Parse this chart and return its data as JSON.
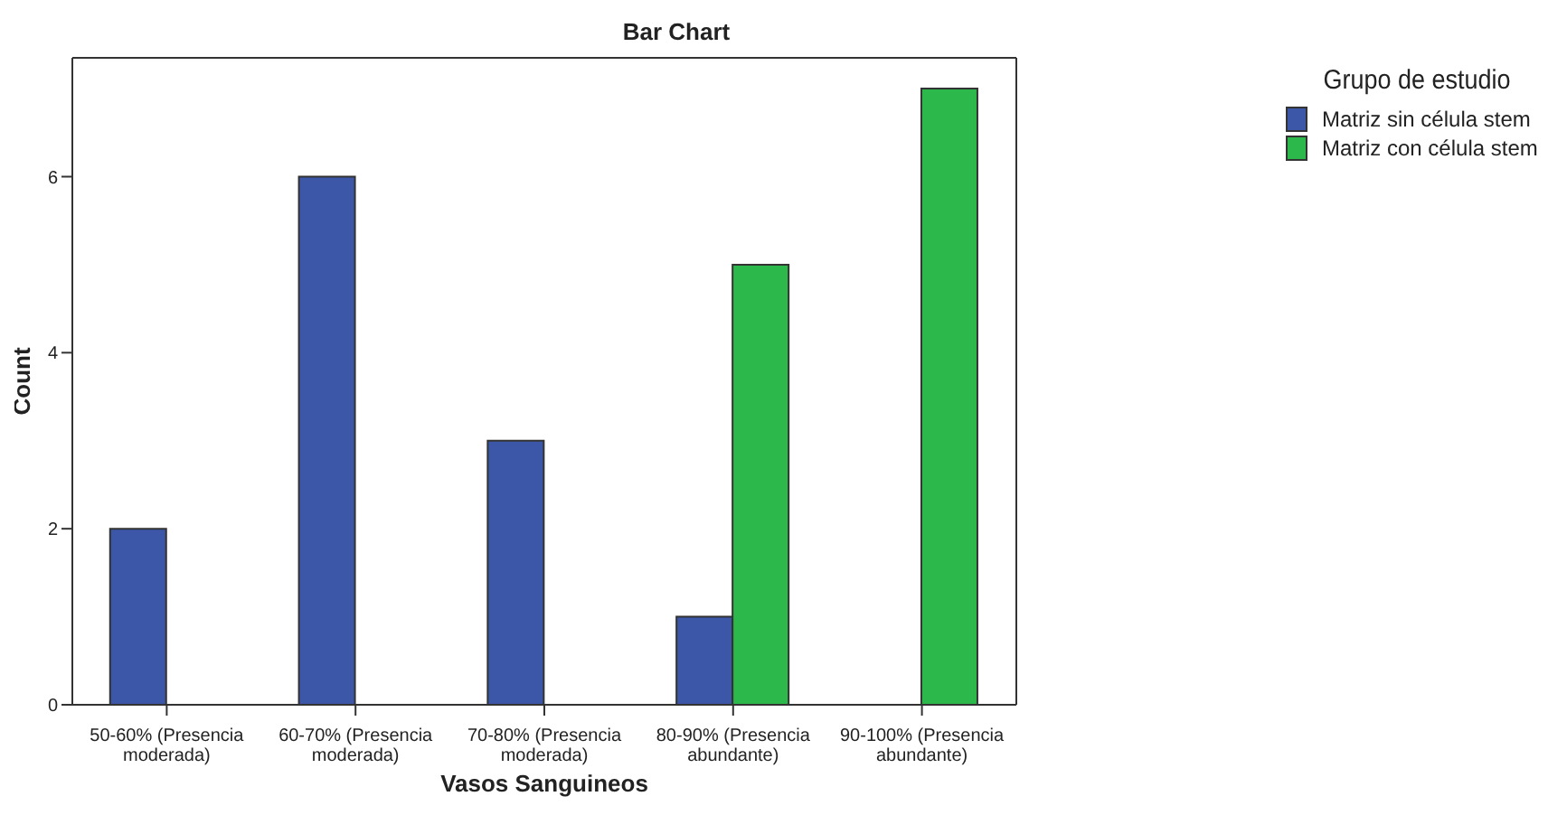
{
  "chart_data": {
    "type": "bar",
    "title": "Bar Chart",
    "xlabel": "Vasos Sanguineos",
    "ylabel": "Count",
    "legend_title": "Grupo de estudio",
    "categories": [
      "50-60% (Presencia moderada)",
      "60-70% (Presencia moderada)",
      "70-80% (Presencia moderada)",
      "80-90% (Presencia abundante)",
      "90-100% (Presencia abundante)"
    ],
    "series": [
      {
        "name": "Matriz sin célula stem",
        "color": "#3c57a8",
        "values": [
          2,
          6,
          3,
          1,
          null
        ]
      },
      {
        "name": "Matriz con célula stem",
        "color": "#2db84b",
        "values": [
          null,
          null,
          null,
          5,
          7
        ]
      }
    ],
    "ylim": [
      0,
      7.35
    ],
    "yticks": [
      0,
      2,
      4,
      6
    ],
    "grid": false,
    "legend": "top right"
  }
}
